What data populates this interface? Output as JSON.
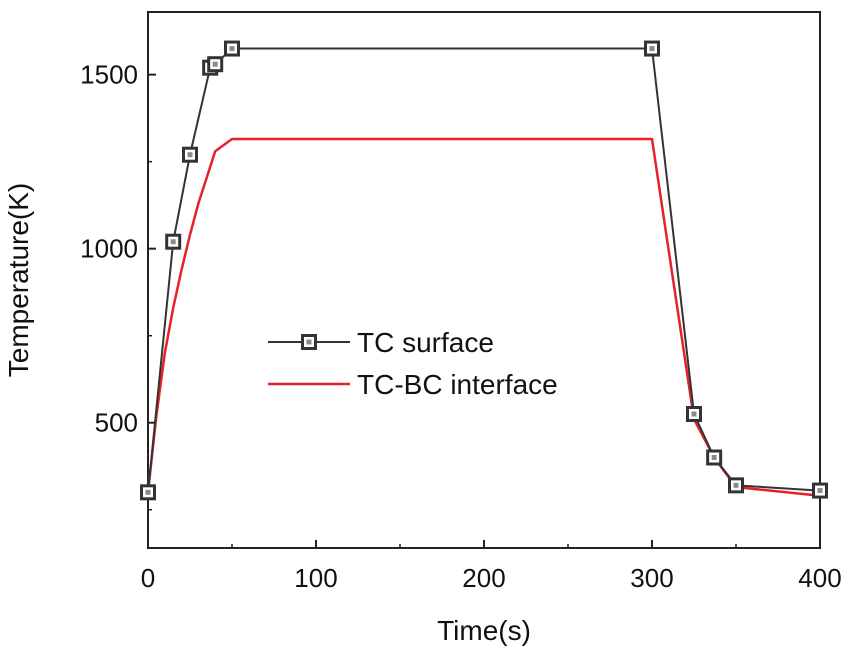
{
  "chart_data": {
    "type": "line",
    "title": "",
    "xlabel": "Time(s)",
    "ylabel": "Temperature(K)",
    "xlim": [
      0,
      400
    ],
    "ylim": [
      140,
      1680
    ],
    "xticks": [
      0,
      100,
      200,
      300,
      400
    ],
    "yticks": [
      500,
      1000,
      1500
    ],
    "grid": false,
    "legend_position": "center-left",
    "series": [
      {
        "name": "TC surface",
        "color": "#333333",
        "marker": "square",
        "x": [
          0,
          15,
          25,
          37,
          40,
          50,
          300,
          325,
          337,
          350,
          400
        ],
        "y": [
          300,
          1020,
          1270,
          1520,
          1530,
          1575,
          1575,
          525,
          400,
          320,
          305
        ]
      },
      {
        "name": "TC-BC interface",
        "color": "#e8202a",
        "marker": "none",
        "x": [
          0,
          5,
          10,
          15,
          20,
          25,
          30,
          35,
          40,
          50,
          300,
          325,
          337,
          350,
          400
        ],
        "y": [
          300,
          520,
          700,
          830,
          940,
          1040,
          1130,
          1205,
          1280,
          1315,
          1315,
          510,
          400,
          315,
          290
        ]
      }
    ]
  }
}
